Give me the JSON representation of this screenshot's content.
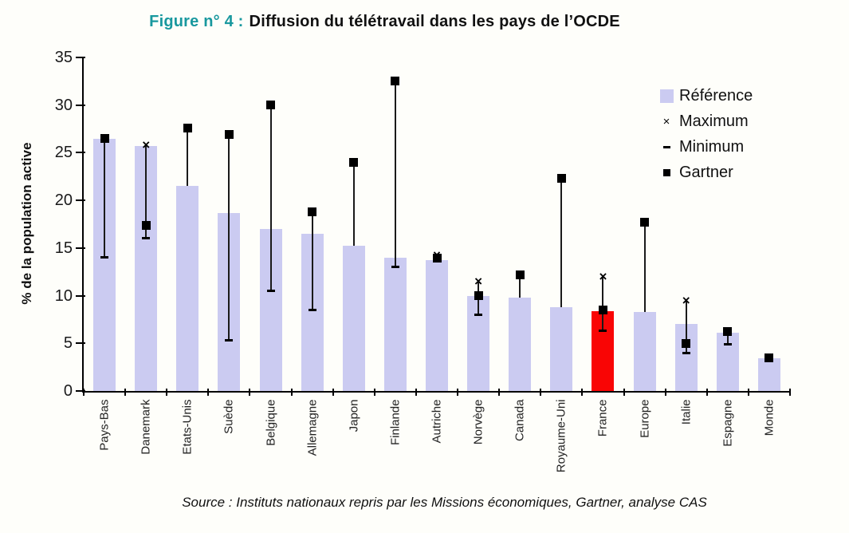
{
  "title": {
    "prefix": "Figure n° 4 :",
    "main": "Diffusion du télétravail dans les pays de l’OCDE"
  },
  "source": "Source : Instituts nationaux repris par les Missions économiques, Gartner, analyse CAS",
  "chart_data": {
    "type": "bar",
    "title": "Diffusion du télétravail dans les pays de l'OCDE",
    "ylabel": "% de la population active",
    "xlabel": "",
    "ylim": [
      0,
      35
    ],
    "ytick_step": 5,
    "grid": false,
    "legend_position": "upper right",
    "highlight_category": "France",
    "colors": {
      "reference_bar": "#cbcbf1",
      "highlight_bar": "#f90505",
      "marker": "#000000",
      "title_prefix": "#18989e"
    },
    "legend": [
      {
        "label": "Référence",
        "marker": "bar"
      },
      {
        "label": "Maximum",
        "marker": "x"
      },
      {
        "label": "Minimum",
        "marker": "dash"
      },
      {
        "label": "Gartner",
        "marker": "square"
      }
    ],
    "categories": [
      "Pays-Bas",
      "Danemark",
      "Etats-Unis",
      "Suède",
      "Belgique",
      "Allemagne",
      "Japon",
      "Finlande",
      "Autriche",
      "Norvège",
      "Canada",
      "Royaume-Uni",
      "France",
      "Europe",
      "Italie",
      "Espagne",
      "Monde"
    ],
    "series": [
      {
        "name": "Référence",
        "type": "bar",
        "values": [
          26.5,
          25.7,
          21.5,
          18.7,
          17,
          16.5,
          15.2,
          14,
          13.7,
          10,
          9.8,
          8.8,
          8.4,
          8.3,
          7,
          6.1,
          3.4
        ]
      },
      {
        "name": "Maximum",
        "type": "marker-x",
        "values": [
          null,
          25.8,
          null,
          null,
          null,
          null,
          null,
          null,
          14.2,
          11.5,
          null,
          null,
          12,
          null,
          9.5,
          null,
          null
        ]
      },
      {
        "name": "Minimum",
        "type": "marker-dash",
        "values": [
          14,
          16,
          null,
          5.3,
          10.5,
          8.5,
          null,
          13,
          null,
          8,
          null,
          null,
          6.3,
          null,
          4,
          4.9,
          null
        ]
      },
      {
        "name": "Gartner",
        "type": "marker-square",
        "values": [
          26.5,
          17.4,
          27.6,
          26.9,
          30,
          18.8,
          24,
          32.5,
          13.9,
          10,
          12.2,
          22.3,
          8.5,
          17.7,
          5,
          6.2,
          3.5
        ]
      }
    ]
  }
}
